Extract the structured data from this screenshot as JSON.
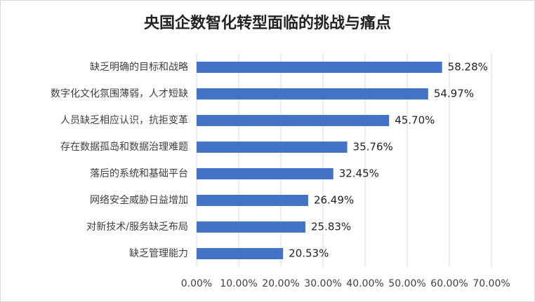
{
  "chart_data": {
    "type": "bar",
    "orientation": "horizontal",
    "title": "央国企数智化转型面临的挑战与痛点",
    "categories": [
      "缺乏明确的目标和战略",
      "数字化文化氛围薄弱，人才短缺",
      "人员缺乏相应认识，抗拒变革",
      "存在数据孤岛和数据治理难题",
      "落后的系统和基础平台",
      "网络安全威胁日益增加",
      "对新技术/服务缺乏布局",
      "缺乏管理能力"
    ],
    "values": [
      58.28,
      54.97,
      45.7,
      35.76,
      32.45,
      26.49,
      25.83,
      20.53
    ],
    "value_labels": [
      "58.28%",
      "54.97%",
      "45.70%",
      "35.76%",
      "32.45%",
      "26.49%",
      "25.83%",
      "20.53%"
    ],
    "color": "#4472c4",
    "xlim": [
      0,
      70
    ],
    "xticks": [
      {
        "value": 0,
        "label": "0.00%"
      },
      {
        "value": 10,
        "label": "10.00%"
      },
      {
        "value": 20,
        "label": "20.00%"
      },
      {
        "value": 30,
        "label": "30.00%"
      },
      {
        "value": 40,
        "label": "40.00%"
      },
      {
        "value": 50,
        "label": "50.00%"
      },
      {
        "value": 60,
        "label": "60.00%"
      },
      {
        "value": 70,
        "label": "70.00%"
      }
    ],
    "grid": true
  }
}
